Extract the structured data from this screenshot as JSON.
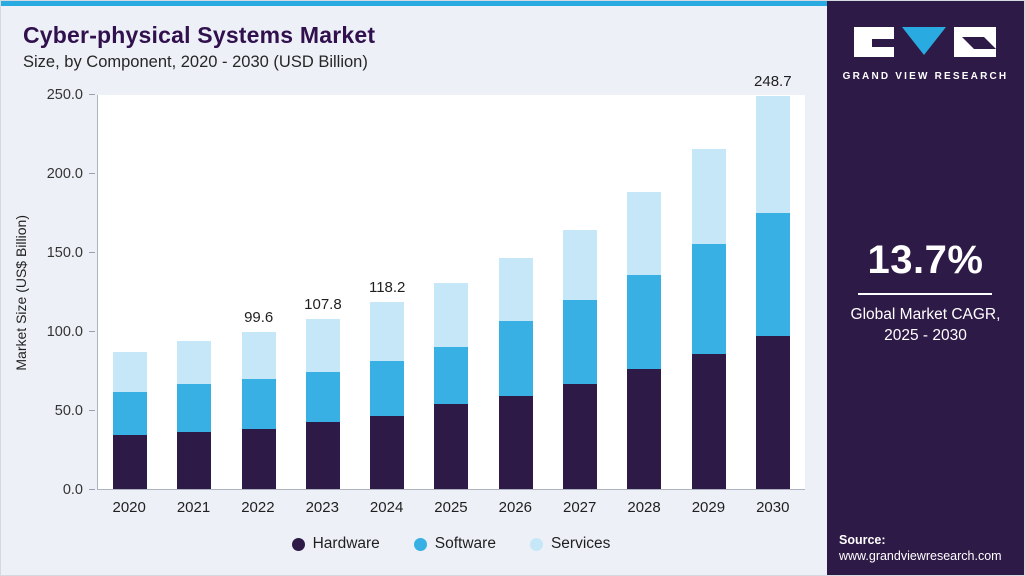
{
  "colors": {
    "accent_blue": "#29abe2",
    "sidebar_bg": "#2e1a47",
    "title_purple": "#31104e",
    "hardware": "#2e1a47",
    "software": "#38b0e4",
    "services": "#c5e7f8"
  },
  "header": {
    "title": "Cyber-physical Systems Market",
    "subtitle": "Size, by Component, 2020 - 2030 (USD Billion)"
  },
  "chart_data": {
    "type": "bar",
    "stacked": true,
    "title": "Cyber-physical Systems Market Size, by Component, 2020 - 2030 (USD Billion)",
    "categories": [
      "2020",
      "2021",
      "2022",
      "2023",
      "2024",
      "2025",
      "2026",
      "2027",
      "2028",
      "2029",
      "2030"
    ],
    "series": [
      {
        "name": "Hardware",
        "color": "#2e1a47",
        "values": [
          34.5,
          35.9,
          38.2,
          42.4,
          46.4,
          53.9,
          59.1,
          66.6,
          75.7,
          85.4,
          96.7
        ]
      },
      {
        "name": "Software",
        "color": "#38b0e4",
        "values": [
          26.9,
          30.7,
          31.5,
          31.4,
          34.5,
          36.1,
          47.2,
          53.3,
          60.0,
          69.7,
          78.2
        ]
      },
      {
        "name": "Services",
        "color": "#c5e7f8",
        "values": [
          25.6,
          26.9,
          29.9,
          34.0,
          37.3,
          40.5,
          39.7,
          44.1,
          52.3,
          59.9,
          73.8
        ]
      }
    ],
    "bar_total_labels": [
      "",
      "",
      "99.6",
      "107.8",
      "118.2",
      "",
      "",
      "",
      "",
      "",
      "248.7"
    ],
    "xlabel": "",
    "ylabel": "Market Size (US$ Billion)",
    "ylim": [
      0,
      250
    ],
    "yticks": [
      "0.0",
      "50.0",
      "100.0",
      "150.0",
      "200.0",
      "250.0"
    ],
    "grid": false,
    "legend_position": "bottom"
  },
  "sidebar": {
    "logo_text": "GRAND VIEW RESEARCH",
    "stat_value": "13.7%",
    "stat_caption_line1": "Global Market CAGR,",
    "stat_caption_line2": "2025 - 2030",
    "source_label": "Source:",
    "source_url": "www.grandviewresearch.com"
  }
}
